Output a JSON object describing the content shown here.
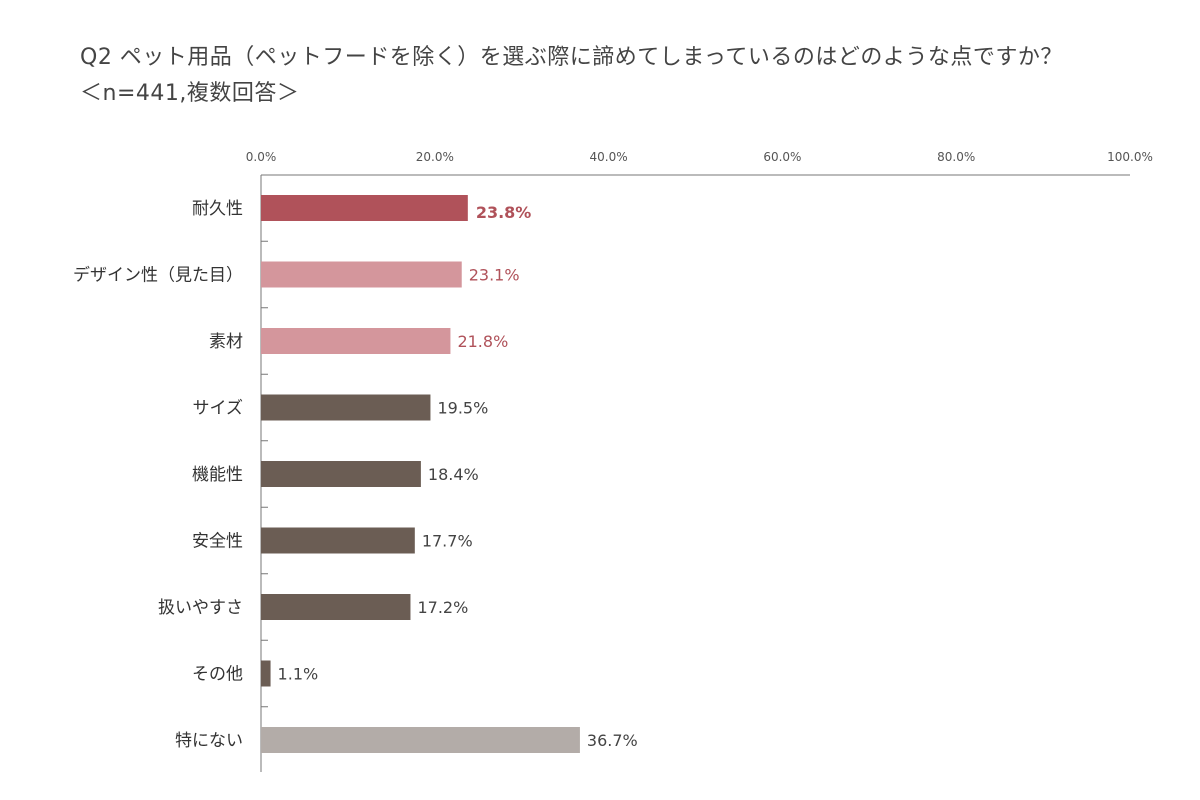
{
  "chart_data": {
    "type": "bar",
    "orientation": "horizontal",
    "title": "Q2 ペット用品（ペットフードを除く）を選ぶ際に諦めてしまっているのはどのような点ですか？",
    "subtitle": "＜n=441,複数回答＞",
    "xlim": [
      0,
      100
    ],
    "xticks": [
      "0.0%",
      "20.0%",
      "40.0%",
      "60.0%",
      "80.0%",
      "100.0%"
    ],
    "xtick_values": [
      0,
      20,
      40,
      60,
      80,
      100
    ],
    "categories": [
      "耐久性",
      "デザイン性（見た目）",
      "素材",
      "サイズ",
      "機能性",
      "安全性",
      "扱いやすさ",
      "その他",
      "特にない"
    ],
    "values": [
      23.8,
      23.1,
      21.8,
      19.5,
      18.4,
      17.7,
      17.2,
      1.1,
      36.7
    ],
    "labels": [
      "23.8%",
      "23.1%",
      "21.8%",
      "19.5%",
      "18.4%",
      "17.7%",
      "17.2%",
      "1.1%",
      "36.7%"
    ],
    "bar_colors": [
      "#b0525a",
      "#d4969c",
      "#d4969c",
      "#6b5d54",
      "#6b5d54",
      "#6b5d54",
      "#6b5d54",
      "#6b5d54",
      "#b3aca8"
    ],
    "label_colors": [
      "#b0525a",
      "#b0525a",
      "#b0525a",
      "#444444",
      "#444444",
      "#444444",
      "#444444",
      "#444444",
      "#444444"
    ],
    "highlight_index": 0
  }
}
